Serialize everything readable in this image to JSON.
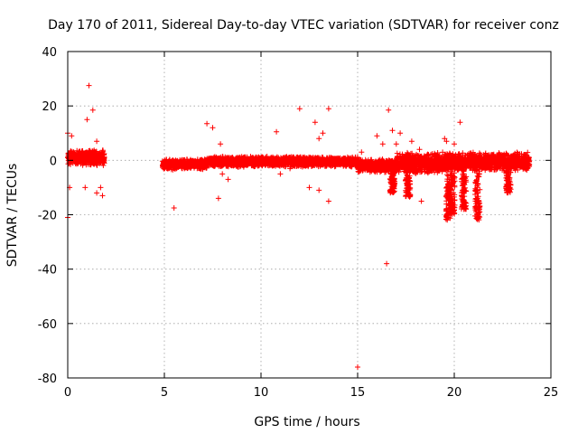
{
  "chart_data": {
    "type": "scatter",
    "title": "Day 170 of 2011, Sidereal Day-to-day VTEC variation (SDTVAR) for receiver conz",
    "xlabel": "GPS time / hours",
    "ylabel": "SDTVAR / TECUs",
    "xlim": [
      0,
      25
    ],
    "ylim": [
      -80,
      40
    ],
    "xticks": [
      0,
      5,
      10,
      15,
      20,
      25
    ],
    "yticks": [
      -80,
      -60,
      -40,
      -20,
      0,
      20,
      40
    ],
    "xtick_labels": [
      "0",
      "5",
      "10",
      "15",
      "20",
      "25"
    ],
    "ytick_labels": [
      "-80",
      "-60",
      "-40",
      "-20",
      "0",
      "20",
      "40"
    ],
    "grid": true,
    "marker": "+",
    "series": [
      {
        "name": "SDTVAR",
        "color": "#ff0000",
        "band_segments": [
          {
            "x0": 0.0,
            "x1": 1.9,
            "y_center": 1.0,
            "half_width": 3.0
          },
          {
            "x0": 4.9,
            "x1": 7.2,
            "y_center": -1.5,
            "half_width": 2.0
          },
          {
            "x0": 7.2,
            "x1": 10.0,
            "y_center": -0.5,
            "half_width": 2.0
          },
          {
            "x0": 10.0,
            "x1": 15.0,
            "y_center": -0.5,
            "half_width": 2.0
          },
          {
            "x0": 15.0,
            "x1": 17.0,
            "y_center": -2.0,
            "half_width": 2.5
          },
          {
            "x0": 17.0,
            "x1": 19.5,
            "y_center": -1.0,
            "half_width": 4.0
          },
          {
            "x0": 19.5,
            "x1": 23.9,
            "y_center": -0.5,
            "half_width": 3.5
          }
        ],
        "dips": [
          {
            "x": 19.7,
            "y_min": -22
          },
          {
            "x": 19.9,
            "y_min": -20
          },
          {
            "x": 20.5,
            "y_min": -18
          },
          {
            "x": 21.2,
            "y_min": -22
          },
          {
            "x": 22.8,
            "y_min": -12
          },
          {
            "x": 16.8,
            "y_min": -12
          },
          {
            "x": 17.6,
            "y_min": -14
          }
        ],
        "outliers": [
          [
            0.0,
            10
          ],
          [
            0.0,
            -21
          ],
          [
            0.1,
            -10
          ],
          [
            0.2,
            9
          ],
          [
            0.9,
            -10
          ],
          [
            1.1,
            27.5
          ],
          [
            1.3,
            18.5
          ],
          [
            1.0,
            15
          ],
          [
            1.5,
            7
          ],
          [
            1.7,
            -10
          ],
          [
            1.8,
            -13
          ],
          [
            1.5,
            -12
          ],
          [
            5.5,
            -17.5
          ],
          [
            7.2,
            13.5
          ],
          [
            7.5,
            12
          ],
          [
            7.8,
            -14
          ],
          [
            7.9,
            6
          ],
          [
            8.0,
            -5
          ],
          [
            8.3,
            -7
          ],
          [
            10.8,
            10.5
          ],
          [
            11.0,
            -5
          ],
          [
            11.5,
            -3
          ],
          [
            12.0,
            19
          ],
          [
            12.5,
            -10
          ],
          [
            12.8,
            14
          ],
          [
            13.0,
            8
          ],
          [
            13.2,
            10
          ],
          [
            13.5,
            19
          ],
          [
            13.5,
            -15
          ],
          [
            13.0,
            -11
          ],
          [
            15.0,
            -76
          ],
          [
            15.2,
            3
          ],
          [
            16.0,
            9
          ],
          [
            16.3,
            6
          ],
          [
            16.5,
            -38
          ],
          [
            16.6,
            18.5
          ],
          [
            16.8,
            11
          ],
          [
            17.0,
            6
          ],
          [
            17.2,
            10
          ],
          [
            17.8,
            7
          ],
          [
            18.3,
            -15
          ],
          [
            18.2,
            4
          ],
          [
            19.5,
            8
          ],
          [
            19.6,
            7
          ],
          [
            20.3,
            14
          ],
          [
            20.0,
            6
          ]
        ]
      }
    ]
  }
}
